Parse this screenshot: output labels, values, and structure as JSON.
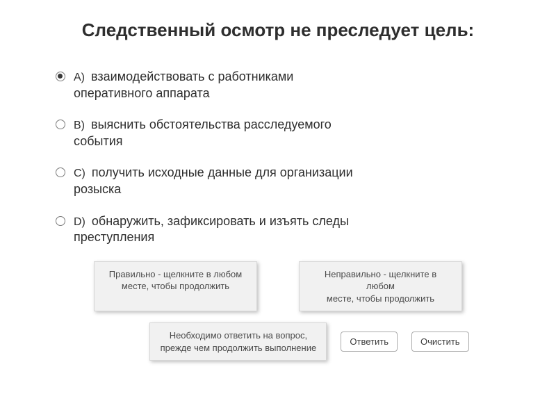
{
  "title": "Следственный осмотр не преследует цель:",
  "options": [
    {
      "lead": "A)",
      "text": "взаимодействовать с работниками оперативного аппарата",
      "selected": true
    },
    {
      "lead": "B)",
      "text": "выяснить обстоятельства расследуемого события",
      "selected": false
    },
    {
      "lead": "C)",
      "text": "получить исходные данные для организации розыска",
      "selected": false
    },
    {
      "lead": "D)",
      "text": "обнаружить, зафиксировать и изъять следы преступления",
      "selected": false
    }
  ],
  "feedback": {
    "correct_line1": "Правильно - щелкните в любом",
    "correct_line2": "месте, чтобы продолжить",
    "incorrect_line1": "Неправильно - щелкните в любом",
    "incorrect_line2": "месте, чтобы продолжить",
    "must_answer_line1": "Необходимо ответить на вопрос,",
    "must_answer_line2": "прежде чем продолжить выполнение"
  },
  "buttons": {
    "submit": "Ответить",
    "clear": "Очистить"
  },
  "colors": {
    "background": "#ffffff",
    "text": "#2e2e2e",
    "panel_bg": "#f1f1f1",
    "panel_border": "#d6d6d6",
    "panel_text": "#4a4a4a",
    "btn_border": "#aaaaaa"
  }
}
